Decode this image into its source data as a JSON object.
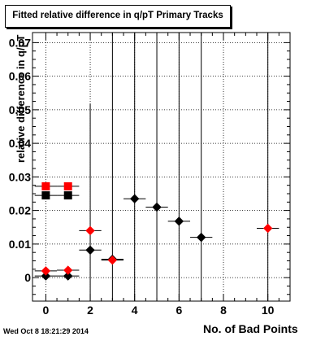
{
  "chart_data": {
    "type": "scatter",
    "title": "Fitted relative difference in q/pT Primary Tracks",
    "xlabel": "No. of Bad Points",
    "ylabel": "relative difference in q/pT",
    "xlim": [
      -0.6,
      11.0
    ],
    "ylim": [
      -0.007,
      0.073
    ],
    "x_ticks": [
      0,
      2,
      4,
      6,
      8,
      10
    ],
    "y_ticks": [
      0,
      0.01,
      0.02,
      0.03,
      0.04,
      0.05,
      0.06,
      0.07
    ],
    "y_tick_labels": [
      "0",
      "0.01",
      "0.02",
      "0.03",
      "0.04",
      "0.05",
      "0.06",
      "0.07"
    ],
    "grid": true,
    "series": [
      {
        "marker": "diamond",
        "color": "#000000",
        "points": [
          {
            "x": 0,
            "y": 0.0005,
            "yerr": 0.0012
          },
          {
            "x": 1,
            "y": 0.0005,
            "yerr": 0.0012
          },
          {
            "x": 2,
            "y": 0.0082,
            "yerr": 0.0435
          },
          {
            "x": 3,
            "y": 0.0055,
            "yerr": 0.08
          },
          {
            "x": 4,
            "y": 0.0235,
            "yerr": 0.08
          },
          {
            "x": 5,
            "y": 0.021,
            "yerr": 0.08
          },
          {
            "x": 6,
            "y": 0.0168,
            "yerr": 0.08
          },
          {
            "x": 7,
            "y": 0.012,
            "yerr": 0.08
          }
        ]
      },
      {
        "marker": "diamond",
        "color": "#ff0000",
        "points": [
          {
            "x": 0,
            "y": 0.002,
            "yerr": 0.0012
          },
          {
            "x": 1,
            "y": 0.0022,
            "yerr": 0.0012
          },
          {
            "x": 2,
            "y": 0.014,
            "yerr": 0.0
          },
          {
            "x": 3,
            "y": 0.0052,
            "yerr": 0.0
          },
          {
            "x": 10,
            "y": 0.0147,
            "yerr": 0.08
          }
        ]
      },
      {
        "marker": "square",
        "color": "#000000",
        "points": [
          {
            "x": 0,
            "y": 0.0245,
            "yerr": 0.0
          },
          {
            "x": 1,
            "y": 0.0245,
            "yerr": 0.0
          }
        ]
      },
      {
        "marker": "square",
        "color": "#ff0000",
        "points": [
          {
            "x": 0,
            "y": 0.0272,
            "yerr": 0.0
          },
          {
            "x": 1,
            "y": 0.0272,
            "yerr": 0.0
          }
        ]
      }
    ]
  },
  "footer": {
    "timestamp": "Wed Oct  8 18:21:29 2014"
  }
}
